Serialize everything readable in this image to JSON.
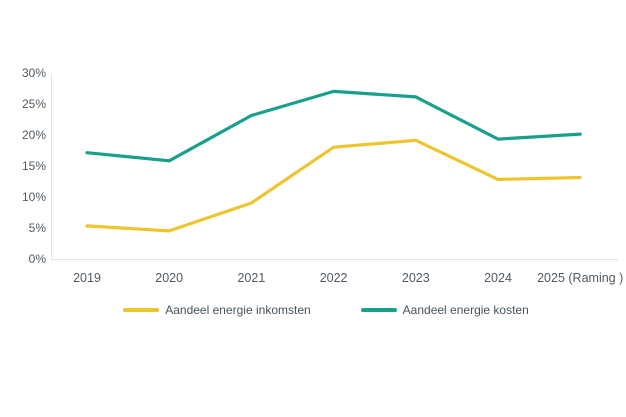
{
  "chart_data": {
    "type": "line",
    "title": "",
    "xlabel": "",
    "ylabel": "",
    "categories": [
      "2019",
      "2020",
      "2021",
      "2022",
      "2023",
      "2024",
      "2025 (Raming )"
    ],
    "series": [
      {
        "name": "Aandeel energie inkomsten",
        "color": "#ECC52F",
        "values": [
          5.5,
          4.7,
          9.2,
          18.2,
          19.3,
          13.0,
          13.3
        ]
      },
      {
        "name": "Aandeel energie kosten",
        "color": "#18A08B",
        "values": [
          17.3,
          16.0,
          23.3,
          27.2,
          26.3,
          19.5,
          20.3
        ]
      }
    ],
    "ylim": [
      0,
      30
    ],
    "ytick_step": 5,
    "ytick_labels": [
      "0%",
      "5%",
      "10%",
      "15%",
      "20%",
      "25%",
      "30%"
    ],
    "grid": false,
    "legend_position": "bottom"
  },
  "colors": {
    "background": "#FFFFFF",
    "axis_text": "#505A64",
    "axis_line": "#E3E3E3"
  }
}
